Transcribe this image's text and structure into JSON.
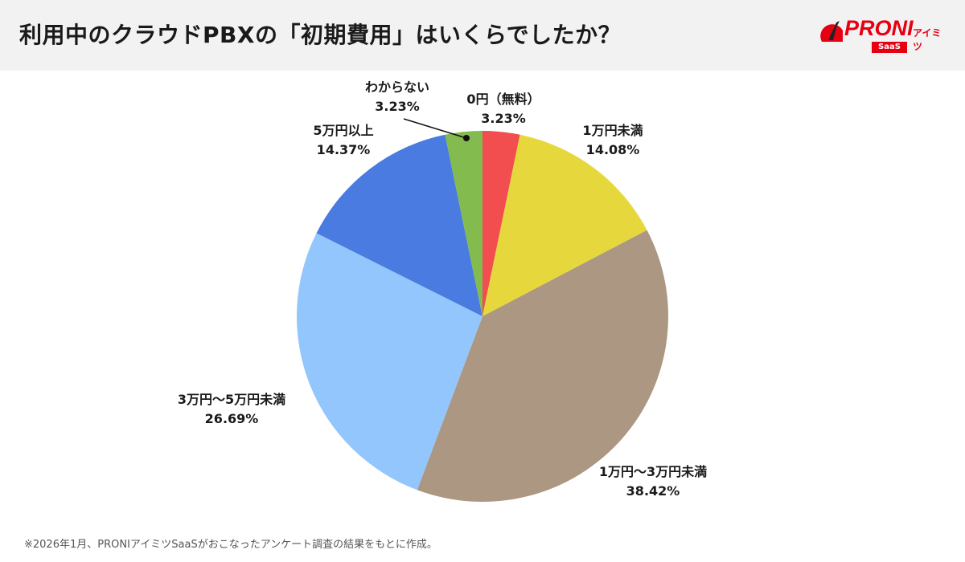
{
  "header": {
    "title": "利用中のクラウドPBXの「初期費用」はいくらでしたか？"
  },
  "logo": {
    "brand": "PRONI",
    "sub": "アイミツ",
    "badge": "SaaS"
  },
  "chart_data": {
    "type": "pie",
    "start": "top",
    "direction": "clockwise",
    "slices": [
      {
        "label": "0円（無料）",
        "value": 3.23,
        "display": "3.23%",
        "color": "#f24d4f"
      },
      {
        "label": "1万円未満",
        "value": 14.08,
        "display": "14.08%",
        "color": "#e6d83c"
      },
      {
        "label": "1万円〜3万円未満",
        "value": 38.42,
        "display": "38.42%",
        "color": "#ab9782"
      },
      {
        "label": "3万円〜5万円未満",
        "value": 26.69,
        "display": "26.69%",
        "color": "#93c6fd"
      },
      {
        "label": "5万円以上",
        "value": 14.37,
        "display": "14.37%",
        "color": "#4a7be0"
      },
      {
        "label": "わからない",
        "value": 3.23,
        "display": "3.23%",
        "color": "#84bb4e"
      }
    ]
  },
  "footer": {
    "note": "※2026年1月、PRONIアイミツSaaSがおこなったアンケート調査の結果をもとに作成。"
  }
}
